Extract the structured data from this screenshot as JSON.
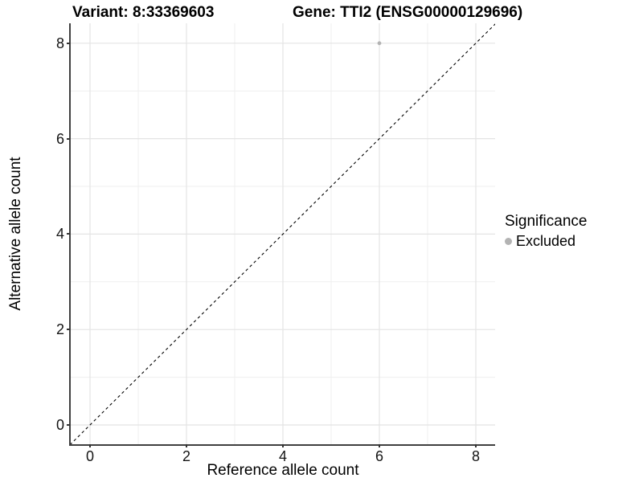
{
  "chart_data": {
    "type": "scatter",
    "title_left": "Variant: 8:33369603",
    "title_right": "Gene: TTI2 (ENSG00000129696)",
    "xlabel": "Reference allele count",
    "ylabel": "Alternative allele count",
    "xlim": [
      -0.4,
      8.4
    ],
    "ylim": [
      -0.4,
      8.4
    ],
    "x_ticks": [
      0,
      2,
      4,
      6,
      8
    ],
    "y_ticks": [
      0,
      2,
      4,
      6,
      8
    ],
    "x_minor_gridlines": [
      1,
      3,
      5,
      7
    ],
    "y_minor_gridlines": [
      1,
      3,
      5,
      7
    ],
    "grid": true,
    "reference_line": {
      "type": "identity y=x",
      "style": "dashed",
      "color": "#000000"
    },
    "points": [
      {
        "x": 6,
        "y": 8,
        "series": "Excluded",
        "color": "#b3b3b3"
      }
    ],
    "legend": {
      "title": "Significance",
      "position": "right",
      "items": [
        {
          "label": "Excluded",
          "color": "#b3b3b3",
          "marker": "circle"
        }
      ]
    },
    "colors": {
      "background": "#ffffff",
      "major_grid": "#e4e4e4",
      "minor_grid": "#efefef",
      "axis_line": "#404040",
      "point": "#b3b3b3"
    }
  }
}
